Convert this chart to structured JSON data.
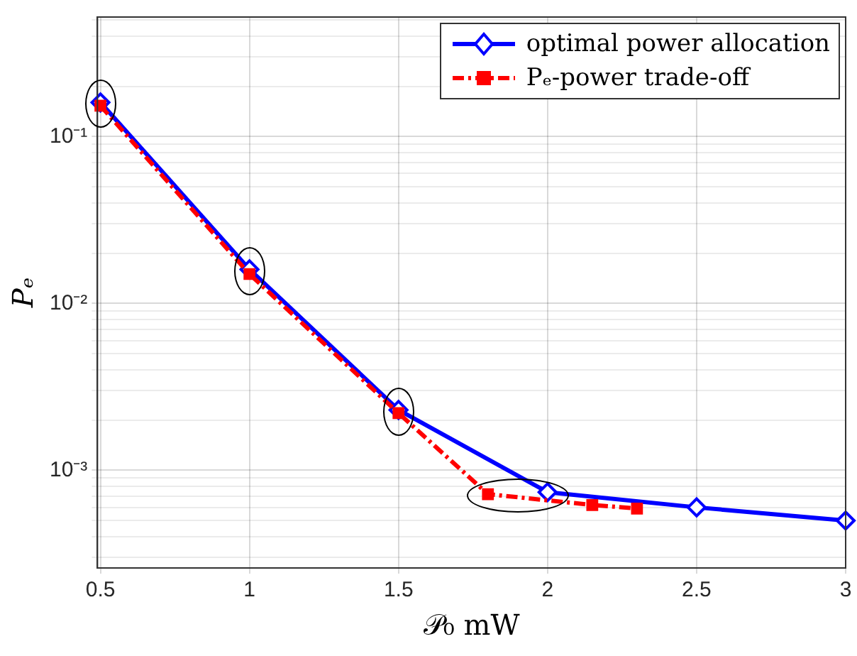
{
  "chart_data": {
    "type": "line",
    "xlabel": "𝒫₀ mW",
    "ylabel": "Pₑ",
    "log": "y",
    "grid": true,
    "legend": "top right",
    "xlim": [
      0.49,
      3
    ],
    "xticks": [
      0.5,
      1,
      1.5,
      2,
      2.5,
      3
    ],
    "ylim": [
      0.00026,
      0.52
    ],
    "yticks": [
      {
        "value": 0.0003,
        "label": null
      },
      {
        "value": 0.0004,
        "label": null
      },
      {
        "value": 0.0005,
        "label": null
      },
      {
        "value": 0.0006,
        "label": null
      },
      {
        "value": 0.0007,
        "label": null
      },
      {
        "value": 0.0008,
        "label": null
      },
      {
        "value": 0.0009,
        "label": null
      },
      {
        "value": 0.001,
        "label": "10⁻³"
      },
      {
        "value": 0.002,
        "label": null
      },
      {
        "value": 0.003,
        "label": null
      },
      {
        "value": 0.004,
        "label": null
      },
      {
        "value": 0.005,
        "label": null
      },
      {
        "value": 0.006,
        "label": null
      },
      {
        "value": 0.007,
        "label": null
      },
      {
        "value": 0.008,
        "label": null
      },
      {
        "value": 0.009,
        "label": null
      },
      {
        "value": 0.01,
        "label": "10⁻²"
      },
      {
        "value": 0.02,
        "label": null
      },
      {
        "value": 0.03,
        "label": null
      },
      {
        "value": 0.04,
        "label": null
      },
      {
        "value": 0.05,
        "label": null
      },
      {
        "value": 0.06,
        "label": null
      },
      {
        "value": 0.07,
        "label": null
      },
      {
        "value": 0.08,
        "label": null
      },
      {
        "value": 0.09,
        "label": null
      },
      {
        "value": 0.1,
        "label": "10⁻¹"
      },
      {
        "value": 0.2,
        "label": null
      },
      {
        "value": 0.3,
        "label": null
      },
      {
        "value": 0.4,
        "label": null
      },
      {
        "value": 0.5,
        "label": null
      }
    ],
    "series": [
      {
        "name": "optimal power allocation",
        "color": "#0000ff",
        "marker": "diamond",
        "line_style": "solid",
        "x": [
          0.5,
          1,
          1.5,
          2,
          2.5,
          3
        ],
        "values": [
          0.16,
          0.016,
          0.0023,
          0.00074,
          0.0006,
          0.0005
        ]
      },
      {
        "name": "Pₑ-power trade-off",
        "color": "#ff0000",
        "marker": "square",
        "line_style": "dashed",
        "x": [
          0.5,
          1,
          1.5,
          1.8,
          2.15,
          2.3
        ],
        "values": [
          0.153,
          0.015,
          0.0022,
          0.00072,
          0.00062,
          0.00059
        ]
      }
    ]
  }
}
